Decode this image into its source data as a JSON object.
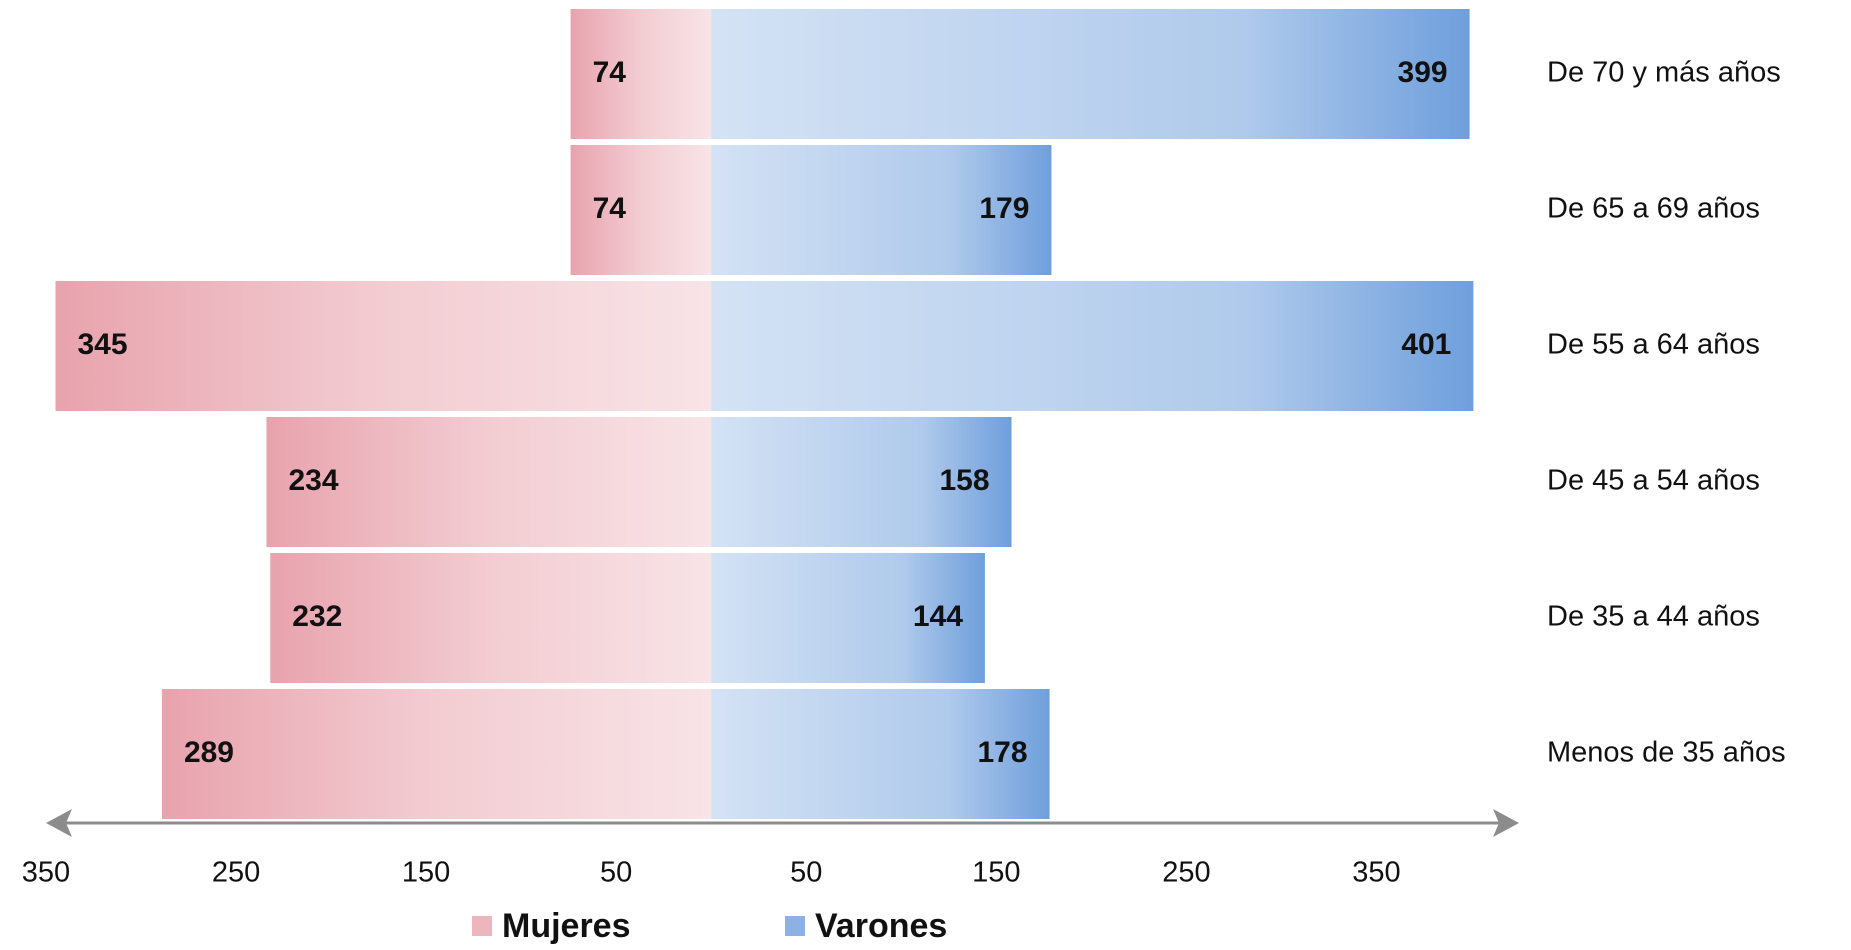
{
  "chart_data": {
    "type": "pyramid",
    "categories": [
      "De 70 y más años",
      "De 65 a 69 años",
      "De 55 a 64 años",
      "De 45 a 54 años",
      "De 35 a 44 años",
      "Menos de 35 años"
    ],
    "series": [
      {
        "name": "Mujeres",
        "color": "#e8a3ad",
        "side": "left",
        "values": [
          74,
          74,
          345,
          234,
          232,
          289
        ]
      },
      {
        "name": "Varones",
        "color": "#6f9fdc",
        "side": "right",
        "values": [
          399,
          179,
          401,
          158,
          144,
          178
        ]
      }
    ],
    "xlim": [
      -350,
      425
    ],
    "xticks": [
      {
        "value": -350,
        "label": "350"
      },
      {
        "value": -250,
        "label": "250"
      },
      {
        "value": -150,
        "label": "150"
      },
      {
        "value": -50,
        "label": "50"
      },
      50,
      150,
      250,
      350
    ],
    "grid": false
  }
}
